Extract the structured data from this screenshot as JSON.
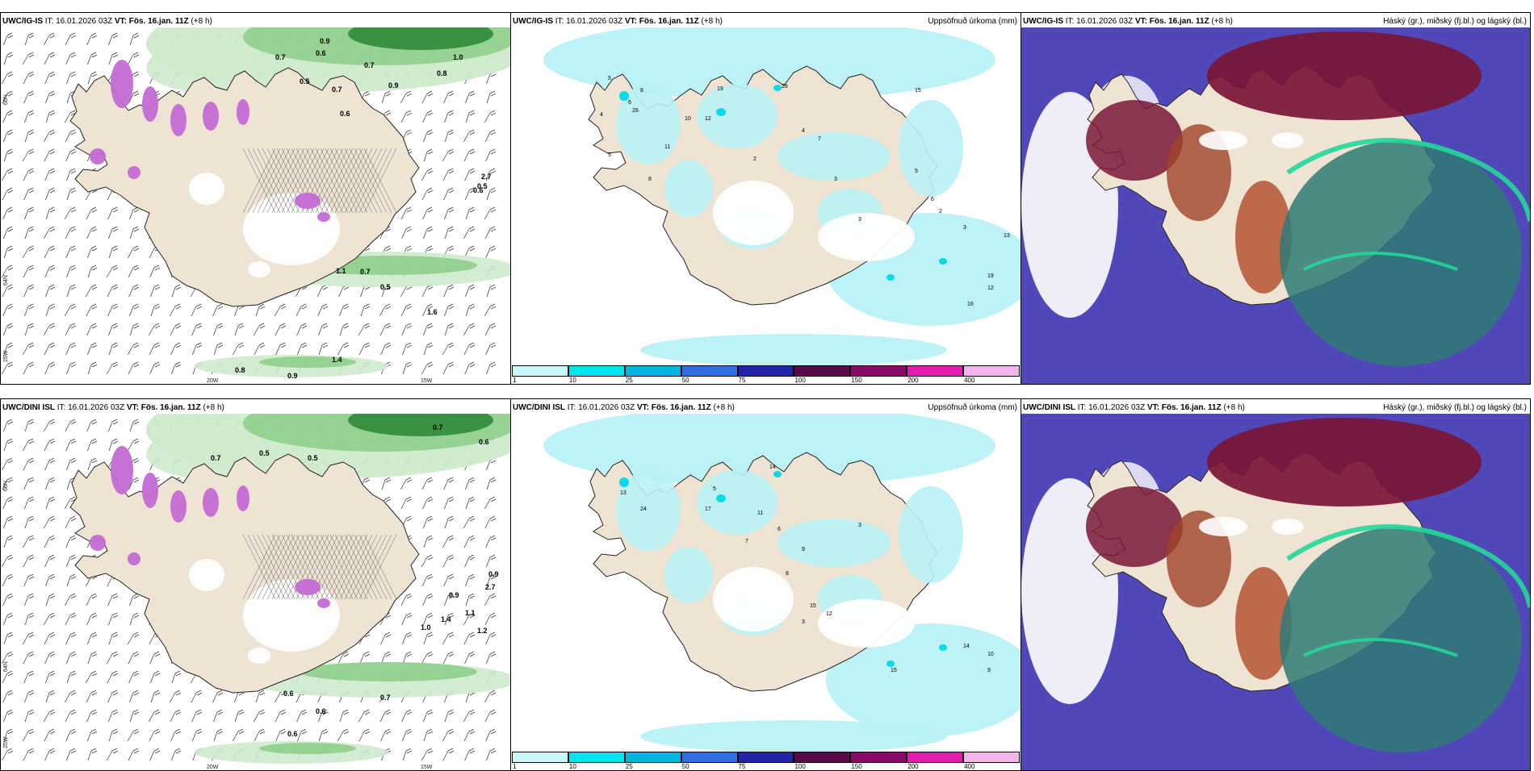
{
  "colors": {
    "land": "#efe3d3",
    "sea": "#ffffff",
    "green_light": "#cfeacc",
    "green_mid": "#8fd08c",
    "green_dark": "#2f8a3a",
    "magenta": "#c46ad4",
    "cyan_light": "#b9f2f5",
    "cyan_mid": "#00d7e8",
    "purple_cloud": "#5048b8",
    "red_cloud": "#7a1636",
    "teal_cloud": "#2f7a76"
  },
  "panels": [
    {
      "model": "UWC/IG-IS",
      "it_label": "IT:",
      "it_value": "16.01.2026 03Z",
      "vt_label": "VT:",
      "vt_value": "Fös. 16.jan. 11Z",
      "lead": "(+8 h)",
      "right_title": ""
    },
    {
      "model": "UWC/IG-IS",
      "it_label": "IT:",
      "it_value": "16.01.2026 03Z",
      "vt_label": "VT:",
      "vt_value": "Fös. 16.jan. 11Z",
      "lead": "(+8 h)",
      "right_title": "Uppsöfnuð úrkoma (mm)"
    },
    {
      "model": "UWC/IG-IS",
      "it_label": "IT:",
      "it_value": "16.01.2026 03Z",
      "vt_label": "VT:",
      "vt_value": "Fös. 16.jan. 11Z",
      "lead": "(+8 h)",
      "right_title": "Háský (gr.), miðský (fj.bl.) og lágský (bl.)"
    },
    {
      "model": "UWC/DINI ISL",
      "it_label": "IT:",
      "it_value": "16.01.2026 03Z",
      "vt_label": "VT:",
      "vt_value": "Fös. 16.jan. 11Z",
      "lead": "(+8 h)",
      "right_title": ""
    },
    {
      "model": "UWC/DINI ISL",
      "it_label": "IT:",
      "it_value": "16.01.2026 03Z",
      "vt_label": "VT:",
      "vt_value": "Fös. 16.jan. 11Z",
      "lead": "(+8 h)",
      "right_title": "Uppsöfnuð úrkoma (mm)"
    },
    {
      "model": "UWC/DINI ISL",
      "it_label": "IT:",
      "it_value": "16.01.2026 03Z",
      "vt_label": "VT:",
      "vt_value": "Fös. 16.jan. 11Z",
      "lead": "(+8 h)",
      "right_title": "Háský (gr.), miðský (fj.bl.) og lágský (bl.)"
    }
  ],
  "axes": {
    "lon_20w": "20W",
    "lon_15w": "15W",
    "lat_66n": "66N",
    "lat_64n": "64N",
    "lon_25w": "25W"
  },
  "precip_legend": {
    "ticks": [
      "1",
      "10",
      "25",
      "50",
      "75",
      "100",
      "150",
      "200",
      "400"
    ],
    "colors": [
      "#c8f7f8",
      "#00e4f0",
      "#00b6e0",
      "#2f6fe0",
      "#2424a8",
      "#5a0a4a",
      "#8a0a6a",
      "#e21cb0",
      "#f3b4ee"
    ]
  },
  "labels": {
    "ig_snow": [
      "0.7",
      "0.6",
      "0.9",
      "0.7",
      "0.8",
      "1.0",
      "0.9",
      "0.7",
      "0.5",
      "0.6",
      "0.5",
      "0.7",
      "1.1",
      "1.6",
      "0.5",
      "0.8",
      "0.9",
      "1.4",
      "2.7",
      "0.6"
    ],
    "ig_precip": [
      "5",
      "6",
      "8",
      "4",
      "12",
      "19",
      "26",
      "10",
      "28",
      "15",
      "5",
      "8",
      "11",
      "2",
      "4",
      "3",
      "7",
      "5",
      "2",
      "6",
      "3",
      "13",
      "12",
      "16",
      "19",
      "3"
    ],
    "dini_snow": [
      "0.7",
      "0.6",
      "0.5",
      "0.7",
      "0.5",
      "0.9",
      "1.1",
      "1.4",
      "1.0",
      "2.7",
      "1.2",
      "0.6",
      "0.7",
      "0.6",
      "0.6",
      "0.9"
    ],
    "dini_precip": [
      "13",
      "24",
      "17",
      "5",
      "14",
      "11",
      "6",
      "9",
      "3",
      "8",
      "7",
      "12",
      "15",
      "15",
      "14",
      "10",
      "9",
      "3"
    ]
  }
}
